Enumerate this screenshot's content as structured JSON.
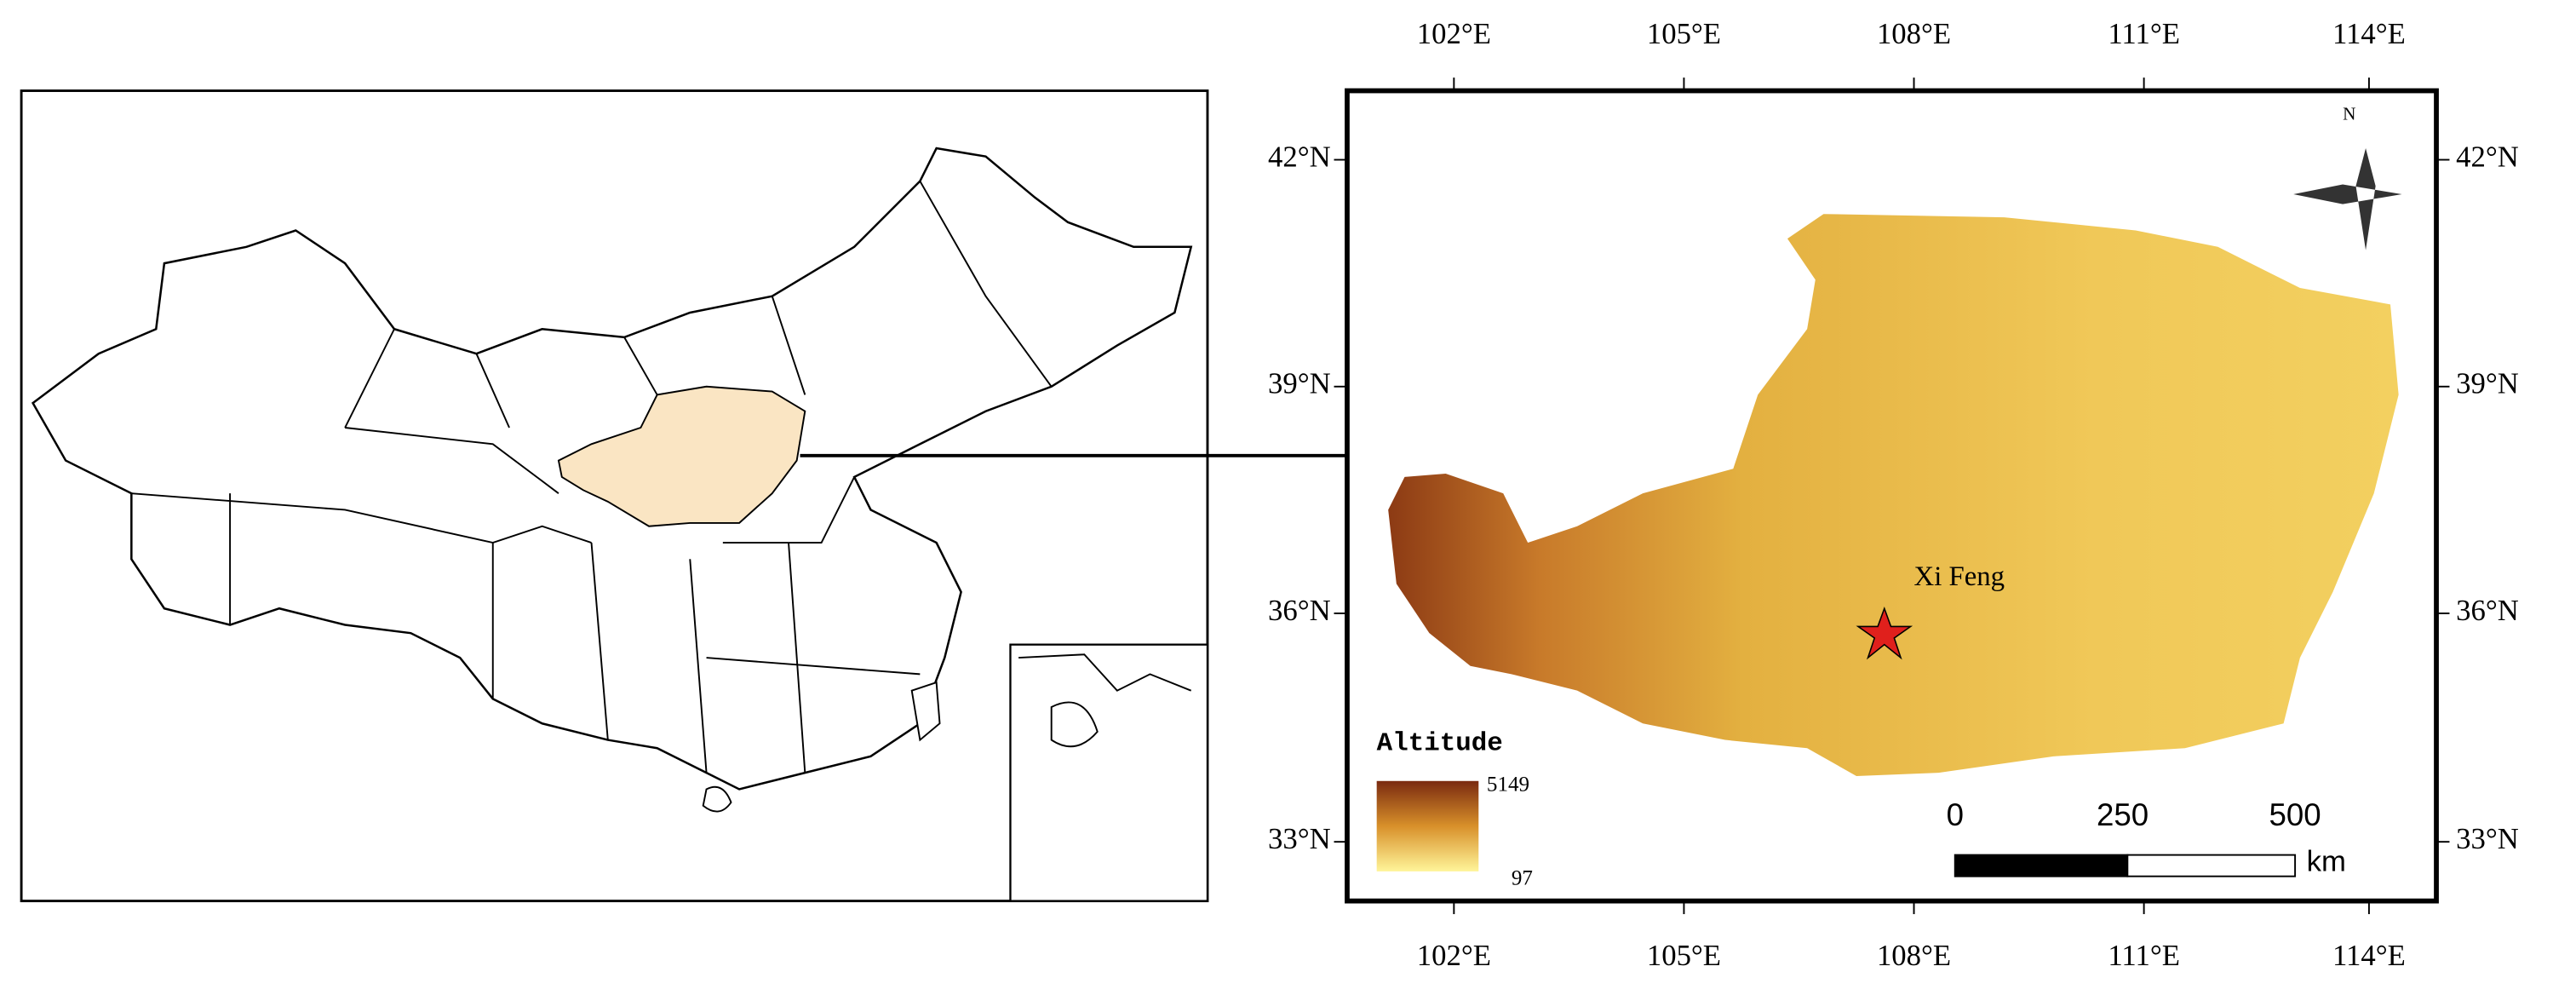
{
  "longitude_labels": [
    "102°E",
    "105°E",
    "108°E",
    "111°E",
    "114°E"
  ],
  "latitude_labels": [
    "42°N",
    "39°N",
    "36°N",
    "33°N"
  ],
  "site_label": "Xi Feng",
  "legend": {
    "title": "Altitude",
    "max": "5149",
    "min": "97"
  },
  "scale_bar": {
    "labels": [
      "0",
      "250",
      "500"
    ],
    "unit": "km"
  },
  "north_label": "N"
}
